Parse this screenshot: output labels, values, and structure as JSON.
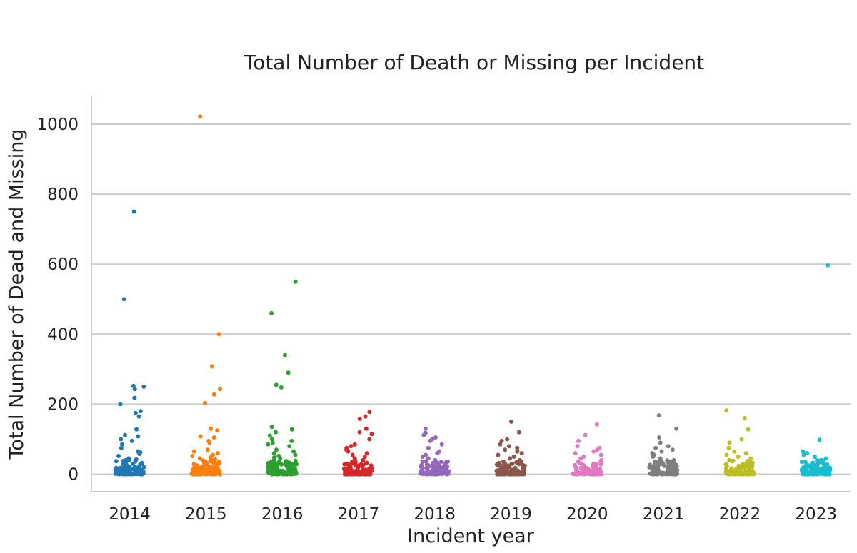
{
  "chart_data": {
    "type": "scatter",
    "title": "Total Number of Death or Missing per Incident",
    "xlabel": "Incident year",
    "ylabel": "Total Number of Dead and Missing",
    "categories": [
      "2014",
      "2015",
      "2016",
      "2017",
      "2018",
      "2019",
      "2020",
      "2021",
      "2022",
      "2023"
    ],
    "y_ticks": [
      0,
      200,
      400,
      600,
      800,
      1000
    ],
    "ylim": [
      -50,
      1075
    ],
    "grid": "horizontal",
    "colors": [
      "#1f77b4",
      "#ff7f0e",
      "#2ca02c",
      "#d62728",
      "#9467bd",
      "#8c564b",
      "#e377c2",
      "#7f7f7f",
      "#bcbd22",
      "#17becf"
    ],
    "series": [
      {
        "category": "2014",
        "notable_values": [
          750,
          500,
          252,
          250,
          243,
          218,
          200,
          180,
          175,
          165,
          128,
          112,
          108,
          100,
          95,
          85,
          75,
          65,
          62,
          58,
          52,
          45,
          42,
          40,
          38,
          35,
          30,
          28,
          25,
          22,
          20,
          18,
          15,
          12,
          10,
          8,
          6,
          5,
          4,
          3,
          2,
          1
        ]
      },
      {
        "category": "2015",
        "notable_values": [
          1022,
          400,
          308,
          243,
          228,
          203,
          130,
          125,
          108,
          105,
          95,
          90,
          70,
          65,
          60,
          55,
          52,
          48,
          45,
          42,
          40,
          35,
          30,
          28,
          25,
          22,
          20,
          18,
          15,
          12,
          10,
          8,
          6,
          5,
          4,
          3,
          2,
          1
        ]
      },
      {
        "category": "2016",
        "notable_values": [
          550,
          460,
          340,
          290,
          255,
          248,
          135,
          128,
          120,
          110,
          100,
          95,
          90,
          85,
          80,
          70,
          65,
          60,
          55,
          52,
          48,
          45,
          40,
          35,
          30,
          28,
          25,
          22,
          20,
          18,
          15,
          12,
          10,
          8,
          6,
          5,
          4,
          3,
          2,
          1
        ]
      },
      {
        "category": "2017",
        "notable_values": [
          178,
          165,
          158,
          130,
          120,
          115,
          100,
          85,
          80,
          75,
          70,
          65,
          60,
          55,
          50,
          45,
          40,
          35,
          30,
          28,
          25,
          22,
          20,
          18,
          15,
          12,
          10,
          8,
          6,
          5,
          4,
          3,
          2,
          1
        ]
      },
      {
        "category": "2018",
        "notable_values": [
          130,
          118,
          112,
          105,
          100,
          95,
          85,
          75,
          65,
          60,
          55,
          50,
          45,
          40,
          35,
          30,
          28,
          25,
          22,
          20,
          18,
          15,
          12,
          10,
          8,
          6,
          5,
          4,
          3,
          2,
          1
        ]
      },
      {
        "category": "2019",
        "notable_values": [
          150,
          120,
          100,
          95,
          85,
          80,
          75,
          70,
          65,
          60,
          55,
          50,
          45,
          40,
          35,
          30,
          28,
          25,
          22,
          20,
          18,
          15,
          12,
          10,
          8,
          6,
          5,
          4,
          3,
          2,
          1
        ]
      },
      {
        "category": "2020",
        "notable_values": [
          142,
          112,
          95,
          80,
          75,
          70,
          65,
          60,
          55,
          50,
          45,
          40,
          35,
          30,
          28,
          25,
          22,
          20,
          18,
          15,
          12,
          10,
          8,
          6,
          5,
          4,
          3,
          2,
          1
        ]
      },
      {
        "category": "2021",
        "notable_values": [
          168,
          130,
          105,
          90,
          80,
          75,
          70,
          65,
          60,
          55,
          50,
          45,
          40,
          35,
          30,
          28,
          25,
          22,
          20,
          18,
          15,
          12,
          10,
          8,
          6,
          5,
          4,
          3,
          2,
          1
        ]
      },
      {
        "category": "2022",
        "notable_values": [
          182,
          160,
          128,
          100,
          90,
          75,
          65,
          60,
          55,
          50,
          45,
          40,
          35,
          30,
          28,
          25,
          22,
          20,
          18,
          15,
          12,
          10,
          8,
          6,
          5,
          4,
          3,
          2,
          1
        ]
      },
      {
        "category": "2023",
        "notable_values": [
          597,
          98,
          65,
          60,
          55,
          50,
          45,
          40,
          35,
          30,
          28,
          25,
          22,
          20,
          18,
          15,
          12,
          10,
          8,
          6,
          5,
          4,
          3,
          2,
          1
        ]
      }
    ]
  }
}
